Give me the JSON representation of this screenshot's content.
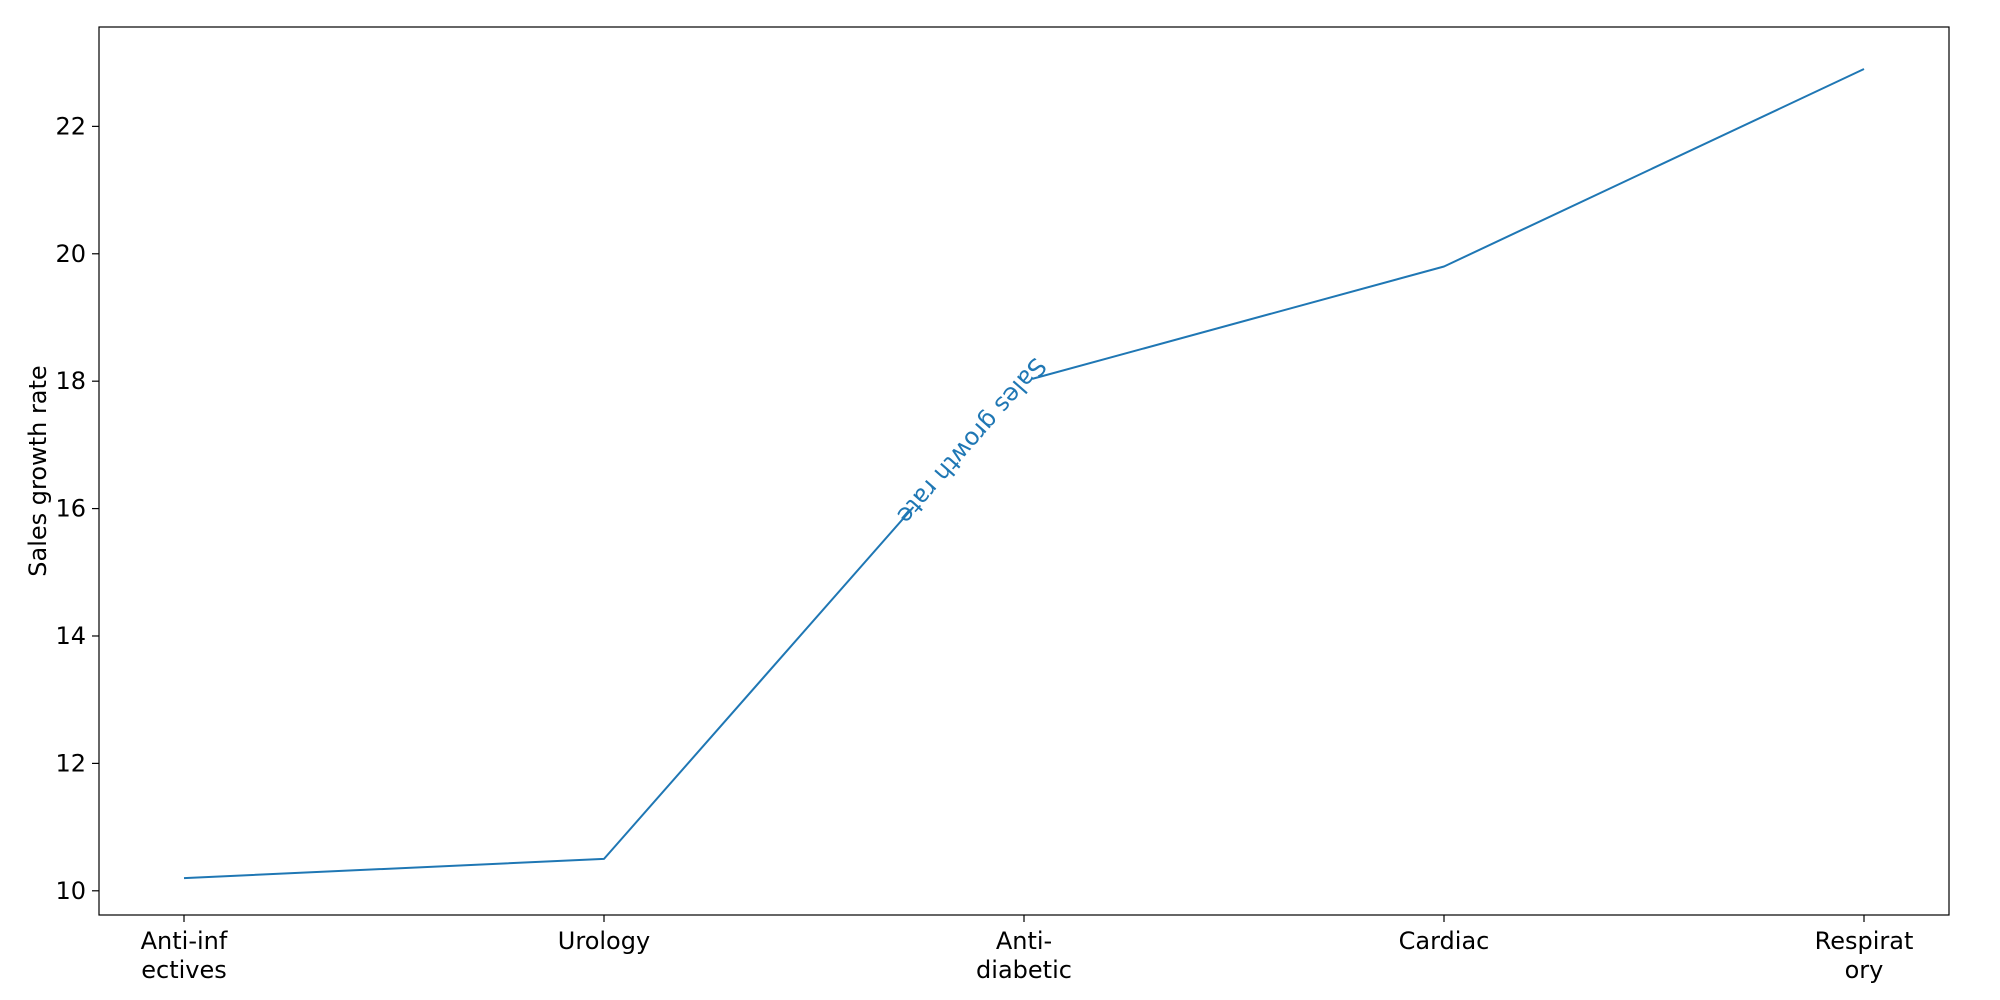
{
  "chart_data": {
    "type": "line",
    "categories": [
      "Anti-infectives",
      "Urology",
      "Anti-diabetic",
      "Cardiac",
      "Respiratory"
    ],
    "category_labels": [
      [
        "Anti-inf",
        "ectives"
      ],
      [
        "Urology"
      ],
      [
        "Anti-",
        "diabetic"
      ],
      [
        "Cardiac"
      ],
      [
        "Respirat",
        "ory"
      ]
    ],
    "series": [
      {
        "name": "Sales growth rate",
        "values": [
          10.2,
          10.5,
          18.0,
          19.8,
          22.9
        ],
        "color": "#1f77b4"
      }
    ],
    "inline_label": "Sales growth rate",
    "ylabel": "Sales growth rate",
    "xlabel": "",
    "ylim": [
      9.62,
      23.56
    ],
    "yticks": [
      10,
      12,
      14,
      16,
      18,
      20,
      22
    ],
    "grid": false,
    "legend": "none"
  }
}
